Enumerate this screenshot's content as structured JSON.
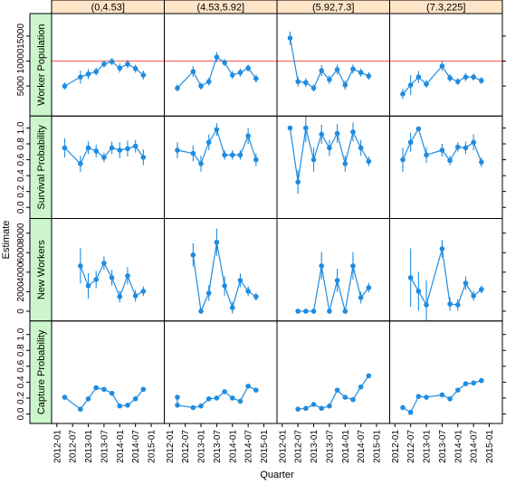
{
  "chart_data": {
    "type": "lattice",
    "x_label": "Quarter",
    "y_label": "Estimate",
    "color": "#1f8ce0",
    "xlim": [
      "2011-11",
      "2015-06"
    ],
    "xticks": [
      "2012-01",
      "2012-07",
      "2013-01",
      "2013-07",
      "2014-01",
      "2014-07",
      "2015-01"
    ],
    "columns": [
      "(0,4.53]",
      "(4.53,5.92]",
      "(5.92,7.3]",
      "(7.3,225]"
    ],
    "rows": [
      {
        "label": "Worker Population",
        "ylim": [
          -1000,
          19500
        ],
        "yticks": [
          5000,
          10000,
          15000
        ],
        "hline": 10000,
        "hline_color": "#ff6b6b",
        "panels": [
          {
            "x": [
              "2012-04",
              "2012-10",
              "2013-01",
              "2013-04",
              "2013-07",
              "2013-10",
              "2014-01",
              "2014-04",
              "2014-07",
              "2014-10"
            ],
            "values": [
              5000,
              6800,
              7400,
              7900,
              9400,
              9900,
              8600,
              9400,
              8500,
              7200
            ],
            "errors": [
              700,
              1300,
              1000,
              800,
              700,
              700,
              900,
              800,
              800,
              900
            ]
          },
          {
            "x": [
              "2012-04",
              "2012-10",
              "2013-01",
              "2013-04",
              "2013-07",
              "2013-10",
              "2014-01",
              "2014-04",
              "2014-07",
              "2014-10"
            ],
            "values": [
              4600,
              7900,
              5000,
              5900,
              10800,
              9700,
              7200,
              7700,
              8600,
              6500
            ],
            "errors": [
              700,
              1100,
              700,
              800,
              1000,
              700,
              800,
              800,
              700,
              800
            ]
          },
          {
            "x": [
              "2012-04",
              "2012-07",
              "2012-10",
              "2013-01",
              "2013-04",
              "2013-07",
              "2013-10",
              "2014-01",
              "2014-04",
              "2014-07",
              "2014-10"
            ],
            "values": [
              14600,
              5900,
              5700,
              4600,
              8100,
              6300,
              8300,
              5200,
              8400,
              7700,
              7000
            ],
            "errors": [
              1300,
              1000,
              900,
              700,
              1100,
              900,
              1000,
              900,
              900,
              800,
              800
            ]
          },
          {
            "x": [
              "2012-04",
              "2012-07",
              "2012-10",
              "2013-01",
              "2013-07",
              "2013-10",
              "2014-01",
              "2014-04",
              "2014-07",
              "2014-10"
            ],
            "values": [
              3400,
              5200,
              6800,
              5400,
              9000,
              6600,
              5900,
              6800,
              6800,
              6100
            ],
            "errors": [
              1000,
              2000,
              1200,
              800,
              1000,
              800,
              700,
              800,
              700,
              700
            ]
          }
        ]
      },
      {
        "label": "Survival Probability",
        "ylim": [
          -0.14,
          1.15
        ],
        "yticks": [
          {
            "value": 0,
            "label": "0.0"
          },
          0.2,
          0.4,
          0.6,
          0.8,
          {
            "value": 1,
            "label": "1.0"
          }
        ],
        "panels": [
          {
            "x": [
              "2012-04",
              "2012-10",
              "2013-01",
              "2013-04",
              "2013-07",
              "2013-10",
              "2014-01",
              "2014-04",
              "2014-07",
              "2014-10"
            ],
            "values": [
              0.75,
              0.55,
              0.75,
              0.71,
              0.63,
              0.75,
              0.72,
              0.74,
              0.77,
              0.63
            ],
            "errors": [
              0.12,
              0.1,
              0.08,
              0.08,
              0.06,
              0.08,
              0.1,
              0.1,
              0.08,
              0.1
            ]
          },
          {
            "x": [
              "2012-04",
              "2012-10",
              "2013-01",
              "2013-04",
              "2013-07",
              "2013-10",
              "2014-01",
              "2014-04",
              "2014-07",
              "2014-10"
            ],
            "values": [
              0.72,
              0.68,
              0.55,
              0.82,
              0.98,
              0.66,
              0.66,
              0.66,
              0.9,
              0.6
            ],
            "errors": [
              0.1,
              0.1,
              0.1,
              0.1,
              0.08,
              0.06,
              0.06,
              0.06,
              0.1,
              0.08
            ]
          },
          {
            "x": [
              "2012-04",
              "2012-07",
              "2012-10",
              "2013-01",
              "2013-04",
              "2013-07",
              "2013-10",
              "2014-01",
              "2014-04",
              "2014-07",
              "2014-10"
            ],
            "values": [
              1,
              0.32,
              1,
              0.6,
              0.92,
              0.75,
              0.93,
              0.55,
              0.95,
              0.75,
              0.58
            ],
            "errors": [
              0.02,
              0.15,
              0.18,
              0.15,
              0.12,
              0.1,
              0.12,
              0.1,
              0.12,
              0.1,
              0.06
            ]
          },
          {
            "x": [
              "2012-04",
              "2012-07",
              "2012-10",
              "2013-01",
              "2013-07",
              "2013-10",
              "2014-01",
              "2014-04",
              "2014-07",
              "2014-10"
            ],
            "values": [
              0.6,
              0.82,
              0.99,
              0.66,
              0.72,
              0.59,
              0.76,
              0.75,
              0.82,
              0.57
            ],
            "errors": [
              0.15,
              0.12,
              0.02,
              0.1,
              0.08,
              0.06,
              0.06,
              0.08,
              0.1,
              0.06
            ]
          }
        ]
      },
      {
        "label": "New Workers",
        "ylim": [
          -1000,
          9500
        ],
        "yticks": [
          0,
          2000,
          4000,
          6000,
          8000
        ],
        "panels": [
          {
            "x": [
              "2012-10",
              "2013-01",
              "2013-04",
              "2013-07",
              "2013-10",
              "2014-01",
              "2014-04",
              "2014-07",
              "2014-10"
            ],
            "values": [
              4650,
              2600,
              3250,
              4930,
              3440,
              1490,
              3630,
              1580,
              2050
            ],
            "errors": [
              1800,
              1300,
              900,
              700,
              800,
              600,
              900,
              600,
              500
            ]
          },
          {
            "x": [
              "2012-10",
              "2013-01",
              "2013-04",
              "2013-07",
              "2013-10",
              "2014-01",
              "2014-04",
              "2014-07",
              "2014-10"
            ],
            "values": [
              5770,
              0,
              1860,
              7070,
              2600,
              370,
              3160,
              2050,
              1490
            ],
            "errors": [
              1200,
              100,
              800,
              1400,
              1000,
              600,
              700,
              500,
              400
            ]
          },
          {
            "x": [
              "2012-07",
              "2012-10",
              "2013-01",
              "2013-04",
              "2013-07",
              "2013-10",
              "2014-01",
              "2014-04",
              "2014-07",
              "2014-10"
            ],
            "values": [
              0,
              0,
              0,
              4650,
              0,
              3160,
              0,
              4650,
              1400,
              2420
            ],
            "errors": [
              50,
              50,
              50,
              1400,
              50,
              1200,
              50,
              1400,
              600,
              500
            ]
          },
          {
            "x": [
              "2012-07",
              "2012-10",
              "2013-01",
              "2013-07",
              "2013-10",
              "2014-01",
              "2014-04",
              "2014-07",
              "2014-10"
            ],
            "values": [
              3440,
              2050,
              650,
              6400,
              740,
              650,
              2880,
              1580,
              2230
            ],
            "errors": [
              3000,
              2000,
              2500,
              900,
              700,
              600,
              700,
              500,
              400
            ]
          }
        ]
      },
      {
        "label": "Capture Probability",
        "ylim": [
          -0.12,
          1.17
        ],
        "yticks": [
          {
            "value": 0,
            "label": "0.0"
          },
          0.2,
          0.4,
          0.6,
          0.8,
          {
            "value": 1,
            "label": "1.0"
          }
        ],
        "panels": [
          {
            "x": [
              "2012-04",
              "2012-10",
              "2013-01",
              "2013-04",
              "2013-07",
              "2013-10",
              "2014-01",
              "2014-04",
              "2014-07",
              "2014-10"
            ],
            "values": [
              0.21,
              0.06,
              0.19,
              0.33,
              0.31,
              0.26,
              0.1,
              0.11,
              0.19,
              0.31
            ],
            "errors": [
              0.02,
              0.02,
              0.02,
              0.02,
              0.02,
              0.02,
              0.02,
              0.02,
              0.02,
              0.02
            ]
          },
          {
            "x": [
              "2012-04",
              "2012-04",
              "2012-10",
              "2013-01",
              "2013-04",
              "2013-07",
              "2013-10",
              "2014-01",
              "2014-04",
              "2014-07",
              "2014-10"
            ],
            "values": [
              0.21,
              0.11,
              0.08,
              0.1,
              0.19,
              0.2,
              0.28,
              0.2,
              0.16,
              0.35,
              0.3
            ],
            "errors": [
              0.02,
              0.02,
              0.02,
              0.02,
              0.02,
              0.02,
              0.02,
              0.02,
              0.02,
              0.02,
              0.02
            ]
          },
          {
            "x": [
              "2012-07",
              "2012-10",
              "2013-01",
              "2013-04",
              "2013-07",
              "2013-10",
              "2014-01",
              "2014-04",
              "2014-07",
              "2014-10"
            ],
            "values": [
              0.06,
              0.07,
              0.12,
              0.07,
              0.1,
              0.3,
              0.21,
              0.18,
              0.34,
              0.48
            ],
            "errors": [
              0.02,
              0.02,
              0.02,
              0.02,
              0.02,
              0.02,
              0.02,
              0.02,
              0.02,
              0.02
            ]
          },
          {
            "x": [
              "2012-04",
              "2012-07",
              "2012-10",
              "2013-01",
              "2013-07",
              "2013-10",
              "2014-01",
              "2014-04",
              "2014-07",
              "2014-10"
            ],
            "values": [
              0.08,
              0.02,
              0.22,
              0.21,
              0.24,
              0.19,
              0.3,
              0.38,
              0.39,
              0.42
            ],
            "errors": [
              0.02,
              0.02,
              0.02,
              0.02,
              0.02,
              0.02,
              0.02,
              0.02,
              0.02,
              0.02
            ]
          }
        ]
      }
    ]
  }
}
